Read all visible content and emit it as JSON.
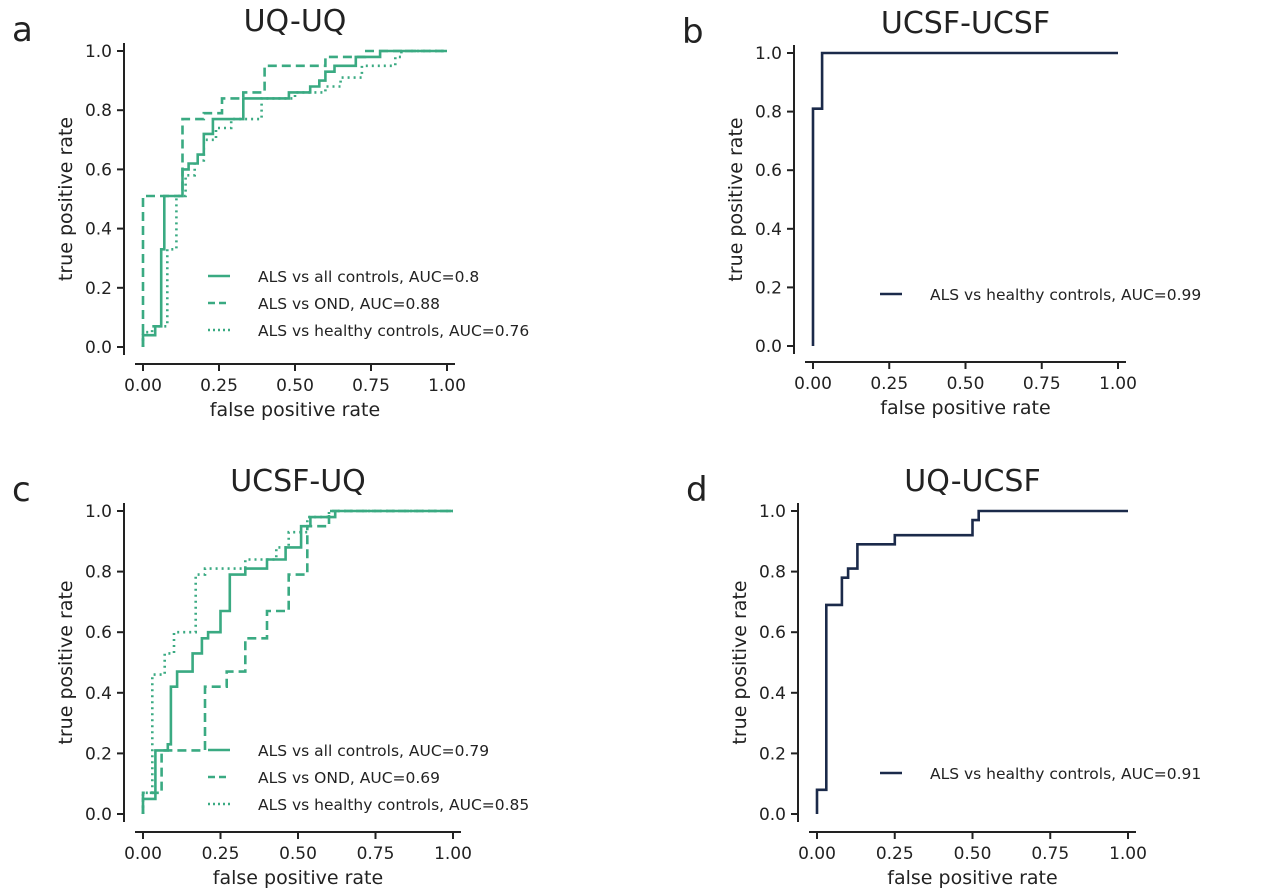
{
  "chart_data": [
    {
      "type": "line",
      "panel": "a",
      "title": "UQ-UQ",
      "xlabel": "false positive rate",
      "ylabel": "true positive rate",
      "xlim": [
        0,
        1
      ],
      "ylim": [
        0,
        1
      ],
      "xticks": [
        "0.00",
        "0.25",
        "0.50",
        "0.75",
        "1.00"
      ],
      "yticks": [
        "0.0",
        "0.2",
        "0.4",
        "0.6",
        "0.8",
        "1.0"
      ],
      "grid": false,
      "legend_position": "lower-right",
      "series": [
        {
          "name": "ALS vs all controls, AUC=0.8",
          "color": "#3aaa82",
          "dash": "solid",
          "points": [
            [
              0,
              0
            ],
            [
              0,
              0.04
            ],
            [
              0.04,
              0.04
            ],
            [
              0.04,
              0.07
            ],
            [
              0.06,
              0.07
            ],
            [
              0.06,
              0.33
            ],
            [
              0.07,
              0.33
            ],
            [
              0.07,
              0.51
            ],
            [
              0.13,
              0.51
            ],
            [
              0.13,
              0.6
            ],
            [
              0.15,
              0.6
            ],
            [
              0.15,
              0.62
            ],
            [
              0.18,
              0.62
            ],
            [
              0.18,
              0.65
            ],
            [
              0.2,
              0.65
            ],
            [
              0.2,
              0.72
            ],
            [
              0.23,
              0.72
            ],
            [
              0.23,
              0.77
            ],
            [
              0.33,
              0.77
            ],
            [
              0.33,
              0.84
            ],
            [
              0.48,
              0.84
            ],
            [
              0.48,
              0.86
            ],
            [
              0.55,
              0.86
            ],
            [
              0.55,
              0.88
            ],
            [
              0.58,
              0.88
            ],
            [
              0.58,
              0.9
            ],
            [
              0.6,
              0.9
            ],
            [
              0.6,
              0.93
            ],
            [
              0.63,
              0.93
            ],
            [
              0.63,
              0.95
            ],
            [
              0.7,
              0.95
            ],
            [
              0.7,
              0.98
            ],
            [
              0.78,
              0.98
            ],
            [
              0.78,
              1.0
            ],
            [
              1.0,
              1.0
            ]
          ]
        },
        {
          "name": "ALS vs OND, AUC=0.88",
          "color": "#3aaa82",
          "dash": "dashed",
          "points": [
            [
              0,
              0
            ],
            [
              0,
              0.51
            ],
            [
              0.13,
              0.51
            ],
            [
              0.13,
              0.77
            ],
            [
              0.2,
              0.77
            ],
            [
              0.2,
              0.79
            ],
            [
              0.26,
              0.79
            ],
            [
              0.26,
              0.84
            ],
            [
              0.33,
              0.84
            ],
            [
              0.33,
              0.86
            ],
            [
              0.4,
              0.86
            ],
            [
              0.4,
              0.95
            ],
            [
              0.6,
              0.95
            ],
            [
              0.6,
              0.98
            ],
            [
              0.73,
              0.98
            ],
            [
              0.73,
              1.0
            ],
            [
              1.0,
              1.0
            ]
          ]
        },
        {
          "name": "ALS vs healthy controls, AUC=0.76",
          "color": "#3aaa82",
          "dash": "dotted",
          "points": [
            [
              0,
              0
            ],
            [
              0,
              0.05
            ],
            [
              0.03,
              0.05
            ],
            [
              0.03,
              0.07
            ],
            [
              0.08,
              0.07
            ],
            [
              0.08,
              0.33
            ],
            [
              0.11,
              0.33
            ],
            [
              0.11,
              0.51
            ],
            [
              0.14,
              0.51
            ],
            [
              0.14,
              0.58
            ],
            [
              0.17,
              0.58
            ],
            [
              0.17,
              0.63
            ],
            [
              0.2,
              0.63
            ],
            [
              0.2,
              0.7
            ],
            [
              0.24,
              0.7
            ],
            [
              0.24,
              0.74
            ],
            [
              0.29,
              0.74
            ],
            [
              0.29,
              0.77
            ],
            [
              0.39,
              0.77
            ],
            [
              0.39,
              0.84
            ],
            [
              0.5,
              0.84
            ],
            [
              0.5,
              0.86
            ],
            [
              0.6,
              0.86
            ],
            [
              0.6,
              0.88
            ],
            [
              0.65,
              0.88
            ],
            [
              0.65,
              0.91
            ],
            [
              0.72,
              0.91
            ],
            [
              0.72,
              0.95
            ],
            [
              0.83,
              0.95
            ],
            [
              0.83,
              0.98
            ],
            [
              0.85,
              0.98
            ],
            [
              0.85,
              1.0
            ],
            [
              1.0,
              1.0
            ]
          ]
        }
      ]
    },
    {
      "type": "line",
      "panel": "b",
      "title": "UCSF-UCSF",
      "xlabel": "false positive rate",
      "ylabel": "true positive rate",
      "xlim": [
        0,
        1
      ],
      "ylim": [
        0,
        1
      ],
      "xticks": [
        "0.00",
        "0.25",
        "0.50",
        "0.75",
        "1.00"
      ],
      "yticks": [
        "0.0",
        "0.2",
        "0.4",
        "0.6",
        "0.8",
        "1.0"
      ],
      "grid": false,
      "legend_position": "lower-right",
      "series": [
        {
          "name": "ALS vs healthy controls, AUC=0.99",
          "color": "#1b2a4a",
          "dash": "solid",
          "points": [
            [
              0,
              0
            ],
            [
              0,
              0.81
            ],
            [
              0.03,
              0.81
            ],
            [
              0.03,
              1.0
            ],
            [
              1.0,
              1.0
            ]
          ]
        }
      ]
    },
    {
      "type": "line",
      "panel": "c",
      "title": "UCSF-UQ",
      "xlabel": "false positive rate",
      "ylabel": "true positive rate",
      "xlim": [
        0,
        1
      ],
      "ylim": [
        0,
        1
      ],
      "xticks": [
        "0.00",
        "0.25",
        "0.50",
        "0.75",
        "1.00"
      ],
      "yticks": [
        "0.0",
        "0.2",
        "0.4",
        "0.6",
        "0.8",
        "1.0"
      ],
      "grid": false,
      "legend_position": "lower-right",
      "series": [
        {
          "name": "ALS vs all controls, AUC=0.79",
          "color": "#3aaa82",
          "dash": "solid",
          "points": [
            [
              0,
              0
            ],
            [
              0,
              0.05
            ],
            [
              0.04,
              0.05
            ],
            [
              0.04,
              0.21
            ],
            [
              0.08,
              0.21
            ],
            [
              0.08,
              0.23
            ],
            [
              0.09,
              0.23
            ],
            [
              0.09,
              0.42
            ],
            [
              0.11,
              0.42
            ],
            [
              0.11,
              0.47
            ],
            [
              0.16,
              0.47
            ],
            [
              0.16,
              0.53
            ],
            [
              0.19,
              0.53
            ],
            [
              0.19,
              0.58
            ],
            [
              0.21,
              0.58
            ],
            [
              0.21,
              0.6
            ],
            [
              0.25,
              0.6
            ],
            [
              0.25,
              0.67
            ],
            [
              0.28,
              0.67
            ],
            [
              0.28,
              0.79
            ],
            [
              0.33,
              0.79
            ],
            [
              0.33,
              0.81
            ],
            [
              0.4,
              0.81
            ],
            [
              0.4,
              0.84
            ],
            [
              0.46,
              0.84
            ],
            [
              0.46,
              0.88
            ],
            [
              0.51,
              0.88
            ],
            [
              0.51,
              0.95
            ],
            [
              0.54,
              0.95
            ],
            [
              0.54,
              0.98
            ],
            [
              0.62,
              0.98
            ],
            [
              0.62,
              1.0
            ],
            [
              1.0,
              1.0
            ]
          ]
        },
        {
          "name": "ALS vs OND, AUC=0.69",
          "color": "#3aaa82",
          "dash": "dashed",
          "points": [
            [
              0,
              0
            ],
            [
              0,
              0.07
            ],
            [
              0.06,
              0.07
            ],
            [
              0.06,
              0.21
            ],
            [
              0.2,
              0.21
            ],
            [
              0.2,
              0.42
            ],
            [
              0.27,
              0.42
            ],
            [
              0.27,
              0.47
            ],
            [
              0.33,
              0.47
            ],
            [
              0.33,
              0.58
            ],
            [
              0.4,
              0.58
            ],
            [
              0.4,
              0.67
            ],
            [
              0.47,
              0.67
            ],
            [
              0.47,
              0.79
            ],
            [
              0.53,
              0.79
            ],
            [
              0.53,
              0.95
            ],
            [
              0.6,
              0.95
            ],
            [
              0.6,
              1.0
            ],
            [
              1.0,
              1.0
            ]
          ]
        },
        {
          "name": "ALS vs healthy controls, AUC=0.85",
          "color": "#3aaa82",
          "dash": "dotted",
          "points": [
            [
              0,
              0
            ],
            [
              0,
              0.07
            ],
            [
              0.03,
              0.07
            ],
            [
              0.03,
              0.46
            ],
            [
              0.07,
              0.46
            ],
            [
              0.07,
              0.53
            ],
            [
              0.1,
              0.53
            ],
            [
              0.1,
              0.6
            ],
            [
              0.17,
              0.6
            ],
            [
              0.17,
              0.79
            ],
            [
              0.2,
              0.79
            ],
            [
              0.2,
              0.81
            ],
            [
              0.33,
              0.81
            ],
            [
              0.33,
              0.84
            ],
            [
              0.43,
              0.84
            ],
            [
              0.43,
              0.88
            ],
            [
              0.47,
              0.88
            ],
            [
              0.47,
              0.93
            ],
            [
              0.53,
              0.93
            ],
            [
              0.53,
              0.98
            ],
            [
              0.6,
              0.98
            ],
            [
              0.6,
              1.0
            ],
            [
              1.0,
              1.0
            ]
          ]
        }
      ]
    },
    {
      "type": "line",
      "panel": "d",
      "title": "UQ-UCSF",
      "xlabel": "false positive rate",
      "ylabel": "true positive rate",
      "xlim": [
        0,
        1
      ],
      "ylim": [
        0,
        1
      ],
      "xticks": [
        "0.00",
        "0.25",
        "0.50",
        "0.75",
        "1.00"
      ],
      "yticks": [
        "0.0",
        "0.2",
        "0.4",
        "0.6",
        "0.8",
        "1.0"
      ],
      "grid": false,
      "legend_position": "lower-right",
      "series": [
        {
          "name": "ALS vs healthy controls, AUC=0.91",
          "color": "#1b2a4a",
          "dash": "solid",
          "points": [
            [
              0,
              0
            ],
            [
              0,
              0.08
            ],
            [
              0.03,
              0.08
            ],
            [
              0.03,
              0.69
            ],
            [
              0.08,
              0.69
            ],
            [
              0.08,
              0.78
            ],
            [
              0.1,
              0.78
            ],
            [
              0.1,
              0.81
            ],
            [
              0.13,
              0.81
            ],
            [
              0.13,
              0.89
            ],
            [
              0.25,
              0.89
            ],
            [
              0.25,
              0.92
            ],
            [
              0.5,
              0.92
            ],
            [
              0.5,
              0.97
            ],
            [
              0.52,
              0.97
            ],
            [
              0.52,
              1.0
            ],
            [
              1.0,
              1.0
            ]
          ]
        }
      ]
    }
  ]
}
